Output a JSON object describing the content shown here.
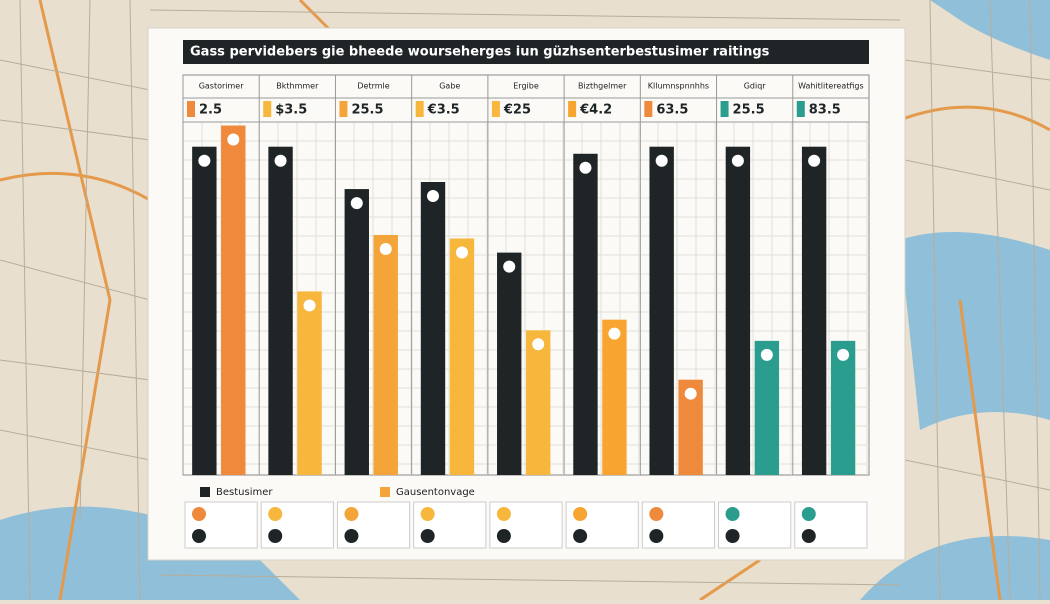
{
  "chart_data": {
    "type": "bar",
    "title": "Gass pervidebers gie bheede wourseherges iun güzhsenterbestusimer raitings",
    "categories": [
      "Gastorimer",
      "Bkthmmer",
      "Detrmle",
      "Gabe",
      "Ergibe",
      "Bizthgelmer",
      "Kllumnspnnhhs",
      "Gdiqr",
      "Wahitlitereatfigs"
    ],
    "price_labels": [
      "2.5",
      "$3.5",
      "25.5",
      "€3.5",
      "€25",
      "€4.2",
      "63.5",
      "25.5",
      "83.5"
    ],
    "ylim": [
      0,
      100
    ],
    "series": [
      {
        "name": "Bestusimer",
        "color": "#1f2526",
        "values": [
          93,
          93,
          81,
          83,
          63,
          91,
          93,
          93,
          93
        ]
      },
      {
        "name": "Gausentonvage",
        "color": "#f4a53a",
        "colors": [
          "#ef8a3c",
          "#f6b73c",
          "#f4a53a",
          "#f6b73c",
          "#f6b73c",
          "#f7a530",
          "#ef8a3c",
          "#2a9d8f",
          "#2a9d8f"
        ],
        "values": [
          99,
          52,
          68,
          67,
          41,
          44,
          27,
          38,
          38
        ]
      }
    ]
  }
}
